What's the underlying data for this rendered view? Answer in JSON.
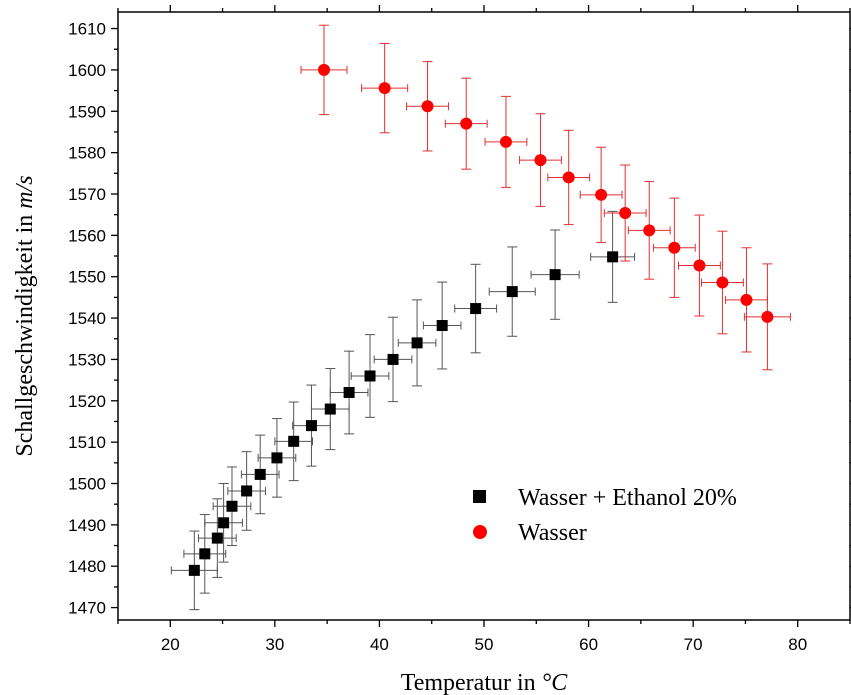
{
  "chart_data": {
    "type": "scatter",
    "xlabel": "Temperatur  in",
    "xlabel_unit": "°C",
    "ylabel": "Schallgeschwindigkeit  in",
    "ylabel_unit": "m/s",
    "xlim": [
      15,
      85
    ],
    "ylim": [
      1467,
      1614
    ],
    "x_ticks": [
      20,
      30,
      40,
      50,
      60,
      70,
      80
    ],
    "y_ticks": [
      1470,
      1480,
      1490,
      1500,
      1510,
      1520,
      1530,
      1540,
      1550,
      1560,
      1570,
      1580,
      1590,
      1600,
      1610
    ],
    "grid": false,
    "legend_position": "lower-right",
    "series": [
      {
        "name": "Wasser + Ethanol 20%",
        "marker": "square",
        "color": "#000000",
        "error_color": "#555555",
        "points": [
          {
            "x": 22.3,
            "y": 1479.0,
            "xerr": 2.2,
            "yerr": 9.5
          },
          {
            "x": 23.3,
            "y": 1483.0,
            "xerr": 2.0,
            "yerr": 9.5
          },
          {
            "x": 24.5,
            "y": 1486.8,
            "xerr": 1.8,
            "yerr": 9.5
          },
          {
            "x": 25.1,
            "y": 1490.5,
            "xerr": 1.8,
            "yerr": 9.5
          },
          {
            "x": 25.9,
            "y": 1494.5,
            "xerr": 1.8,
            "yerr": 9.5
          },
          {
            "x": 27.3,
            "y": 1498.2,
            "xerr": 1.8,
            "yerr": 9.5
          },
          {
            "x": 28.6,
            "y": 1502.2,
            "xerr": 1.8,
            "yerr": 9.5
          },
          {
            "x": 30.2,
            "y": 1506.2,
            "xerr": 1.8,
            "yerr": 9.5
          },
          {
            "x": 31.8,
            "y": 1510.2,
            "xerr": 1.8,
            "yerr": 9.5
          },
          {
            "x": 33.5,
            "y": 1514.0,
            "xerr": 1.8,
            "yerr": 9.8
          },
          {
            "x": 35.3,
            "y": 1518.0,
            "xerr": 1.8,
            "yerr": 9.8
          },
          {
            "x": 37.1,
            "y": 1522.0,
            "xerr": 1.8,
            "yerr": 10.0
          },
          {
            "x": 39.1,
            "y": 1526.0,
            "xerr": 1.8,
            "yerr": 10.0
          },
          {
            "x": 41.3,
            "y": 1530.0,
            "xerr": 1.8,
            "yerr": 10.2
          },
          {
            "x": 43.6,
            "y": 1534.0,
            "xerr": 1.8,
            "yerr": 10.4
          },
          {
            "x": 46.0,
            "y": 1538.2,
            "xerr": 1.8,
            "yerr": 10.5
          },
          {
            "x": 49.2,
            "y": 1542.3,
            "xerr": 2.0,
            "yerr": 10.7
          },
          {
            "x": 52.7,
            "y": 1546.4,
            "xerr": 2.2,
            "yerr": 10.8
          },
          {
            "x": 56.8,
            "y": 1550.5,
            "xerr": 2.3,
            "yerr": 10.8
          },
          {
            "x": 62.3,
            "y": 1554.8,
            "xerr": 2.1,
            "yerr": 11.0
          }
        ]
      },
      {
        "name": "Wasser",
        "marker": "circle",
        "color": "#ff0000",
        "error_color": "#e23030",
        "points": [
          {
            "x": 34.7,
            "y": 1600.0,
            "xerr": 2.2,
            "yerr": 10.8
          },
          {
            "x": 40.5,
            "y": 1595.6,
            "xerr": 2.2,
            "yerr": 10.8
          },
          {
            "x": 44.6,
            "y": 1591.2,
            "xerr": 2.0,
            "yerr": 10.8
          },
          {
            "x": 48.3,
            "y": 1587.0,
            "xerr": 2.0,
            "yerr": 11.0
          },
          {
            "x": 52.1,
            "y": 1582.6,
            "xerr": 2.0,
            "yerr": 11.0
          },
          {
            "x": 55.4,
            "y": 1578.2,
            "xerr": 2.0,
            "yerr": 11.2
          },
          {
            "x": 58.1,
            "y": 1574.0,
            "xerr": 2.0,
            "yerr": 11.4
          },
          {
            "x": 61.2,
            "y": 1569.8,
            "xerr": 2.0,
            "yerr": 11.5
          },
          {
            "x": 63.5,
            "y": 1565.4,
            "xerr": 2.0,
            "yerr": 11.6
          },
          {
            "x": 65.8,
            "y": 1561.2,
            "xerr": 2.0,
            "yerr": 11.8
          },
          {
            "x": 68.2,
            "y": 1557.0,
            "xerr": 2.0,
            "yerr": 12.0
          },
          {
            "x": 70.6,
            "y": 1552.7,
            "xerr": 2.0,
            "yerr": 12.2
          },
          {
            "x": 72.8,
            "y": 1548.6,
            "xerr": 2.0,
            "yerr": 12.4
          },
          {
            "x": 75.1,
            "y": 1544.4,
            "xerr": 2.0,
            "yerr": 12.6
          },
          {
            "x": 77.1,
            "y": 1540.3,
            "xerr": 2.2,
            "yerr": 12.8
          }
        ]
      }
    ]
  }
}
